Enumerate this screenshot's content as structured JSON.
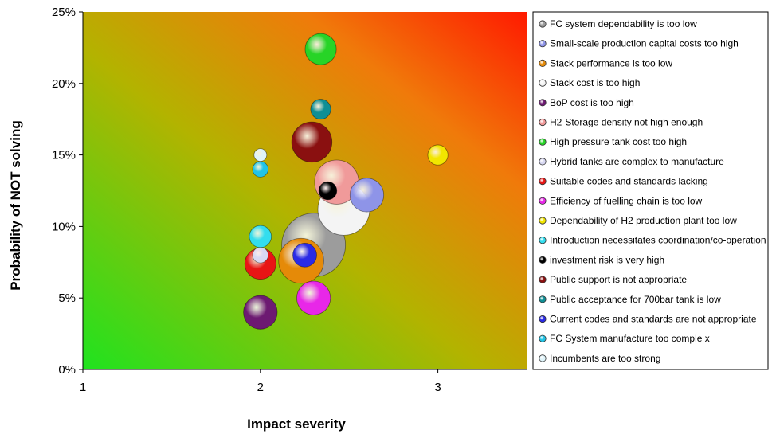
{
  "chart_data": {
    "type": "bubble",
    "xlabel": "Impact severity",
    "ylabel": "Probability of NOT solving",
    "xlim": [
      1,
      3.5
    ],
    "ylim": [
      0,
      25
    ],
    "x_ticks": [
      1,
      2,
      3
    ],
    "y_ticks": [
      0,
      5,
      10,
      15,
      20,
      25
    ],
    "y_tick_suffix": "%",
    "grid": false,
    "legend_position": "right",
    "background": "diagonal gradient from green (bottom-left) through olive/orange to red (top-right)",
    "series": [
      {
        "name": "FC system dependability is too low",
        "color": "#9c9c9c",
        "x": 2.3,
        "y": 8.7,
        "size": 5.0
      },
      {
        "name": "Small-scale production capital costs too high",
        "color": "#8e94e8",
        "x": 2.6,
        "y": 12.2,
        "size": 1.4
      },
      {
        "name": "Stack performance is too low",
        "color": "#e58a08",
        "x": 2.23,
        "y": 7.6,
        "size": 2.5
      },
      {
        "name": "Stack cost is too high",
        "color": "#f4f4f4",
        "x": 2.47,
        "y": 11.2,
        "size": 3.3
      },
      {
        "name": "BoP cost is too high",
        "color": "#6d1a72",
        "x": 2.0,
        "y": 4.0,
        "size": 1.4
      },
      {
        "name": "H2-Storage density not high enough",
        "color": "#f09a9a",
        "x": 2.43,
        "y": 13.1,
        "size": 2.4
      },
      {
        "name": "High pressure tank cost too high",
        "color": "#27d427",
        "x": 2.34,
        "y": 22.4,
        "size": 1.2
      },
      {
        "name": "Hybrid tanks are complex to manufacture",
        "color": "#d8d8f2",
        "x": 2.0,
        "y": 8.0,
        "size": 0.3
      },
      {
        "name": "Suitable codes and standards lacking",
        "color": "#e81515",
        "x": 2.0,
        "y": 7.4,
        "size": 1.2
      },
      {
        "name": "Efficiency of fuelling chain is too low",
        "color": "#e827e8",
        "x": 2.3,
        "y": 5.0,
        "size": 1.4
      },
      {
        "name": "Dependability of H2 production plant too low",
        "color": "#f2e600",
        "x": 3.0,
        "y": 15.0,
        "size": 0.5
      },
      {
        "name": "Introduction necessitates coordination/co-operation",
        "color": "#33ddee",
        "x": 2.0,
        "y": 9.3,
        "size": 0.6
      },
      {
        "name": "investment risk is very high",
        "color": "#000000",
        "x": 2.38,
        "y": 12.5,
        "size": 0.4
      },
      {
        "name": "Public support is not appropriate",
        "color": "#8a1010",
        "x": 2.29,
        "y": 15.9,
        "size": 2.0
      },
      {
        "name": "Public acceptance for 700bar tank is low",
        "color": "#0f8f95",
        "x": 2.34,
        "y": 18.2,
        "size": 0.5
      },
      {
        "name": "Current codes and standards are not appropriate",
        "color": "#2a2ae6",
        "x": 2.25,
        "y": 8.0,
        "size": 0.7
      },
      {
        "name": "FC System manufacture too comple x",
        "color": "#20c4e6",
        "x": 2.0,
        "y": 14.0,
        "size": 0.3
      },
      {
        "name": "Incumbents are too strong",
        "color": "#dff4fa",
        "x": 2.0,
        "y": 15.0,
        "size": 0.2
      }
    ]
  }
}
